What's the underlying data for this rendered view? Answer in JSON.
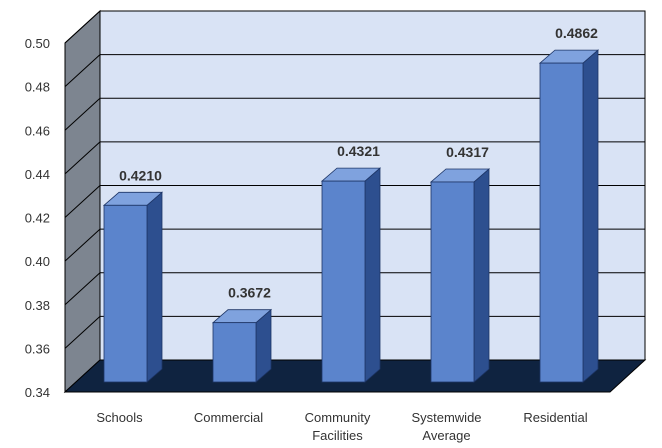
{
  "chart_data": {
    "type": "bar",
    "title": "",
    "xlabel": "",
    "ylabel": "",
    "ylim": [
      0.34,
      0.5
    ],
    "yticks": [
      "0.34",
      "0.36",
      "0.38",
      "0.40",
      "0.42",
      "0.44",
      "0.46",
      "0.48",
      "0.50"
    ],
    "grid": true,
    "legend": "none",
    "categories": [
      [
        "Schools"
      ],
      [
        "Commercial"
      ],
      [
        "Community",
        "Facilities"
      ],
      [
        "Systemwide",
        "Average"
      ],
      [
        "Residential"
      ]
    ],
    "values": [
      0.421,
      0.3672,
      0.4321,
      0.4317,
      0.4862
    ],
    "data_labels": [
      "0.4210",
      "0.3672",
      "0.4321",
      "0.4317",
      "0.4862"
    ],
    "colors": {
      "back_wall": "#d9e3f5",
      "side_wall": "#7d8590",
      "floor": "#0f2340",
      "bar_front": "#5b84cc",
      "bar_top": "#7fa2de",
      "bar_side": "#2d4f8f",
      "grid": "#000000"
    }
  }
}
